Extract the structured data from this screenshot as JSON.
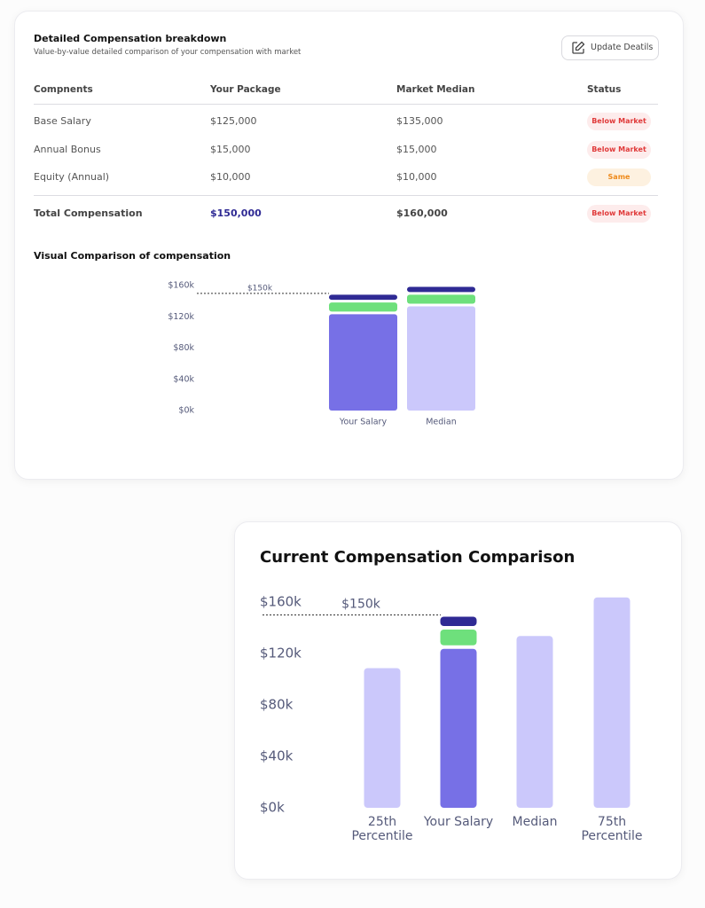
{
  "breakdown": {
    "title": "Detailed Compensation breakdown",
    "subtitle": "Value-by-value detailed comparison of your compensation with market",
    "button": "Update Deatils",
    "table": {
      "headers": [
        "Compnents",
        "Your Package",
        "Market Median",
        "Status"
      ],
      "rows": [
        [
          "Base Salary",
          "$125,000",
          "$135,000",
          "Below Market"
        ],
        [
          "Annual Bonus",
          "$15,000",
          "$15,000",
          "Below Market"
        ],
        [
          "Equity (Annual)",
          "$10,000",
          "$10,000",
          "Same"
        ]
      ],
      "total": [
        "Total Compensation",
        "$150,000",
        "$160,000",
        "Below Market"
      ]
    },
    "chart": {
      "type": "stacked-bar",
      "title": "Visual Comparison of compensation",
      "categories": [
        "Your Salary",
        "Median"
      ],
      "series": [
        {
          "colors": [
            "#7770e6",
            "#cbc8fb"
          ],
          "values": [
            125000,
            135000
          ]
        },
        {
          "colors": [
            "#6ee07c",
            "#6ee07c"
          ],
          "values": [
            15000,
            15000
          ]
        },
        {
          "colors": [
            "#2f2a94",
            "#2f2a94"
          ],
          "values": [
            10000,
            10000
          ]
        }
      ],
      "ylim": [
        0,
        160000
      ],
      "yticks": [
        {
          "value": 0,
          "label": "$0k"
        },
        {
          "value": 40000,
          "label": "$40k"
        },
        {
          "value": 80000,
          "label": "$80k"
        },
        {
          "value": 120000,
          "label": "$120k"
        },
        {
          "value": 160000,
          "label": "$160k"
        }
      ],
      "reference": {
        "value": 150000,
        "label": "$150k"
      }
    }
  },
  "comparison": {
    "chart": {
      "type": "stacked-bar",
      "title": "Current Compensation Comparison",
      "categories": [
        "25th Percentile",
        "Your Salary",
        "Median",
        "75th Percentile"
      ],
      "series": [
        {
          "colors": [
            "#cbc8fb",
            "#7770e6",
            "#cbc8fb",
            "#cbc8fb"
          ],
          "values": [
            110000,
            125000,
            135000,
            165000
          ]
        },
        {
          "colors": [
            "#6ee07c",
            "#6ee07c",
            "#6ee07c",
            "#6ee07c"
          ],
          "values": [
            null,
            15000,
            null,
            null
          ]
        },
        {
          "colors": [
            "#2f2a94",
            "#2f2a94",
            "#2f2a94",
            "#2f2a94"
          ],
          "values": [
            null,
            10000,
            null,
            null
          ]
        }
      ],
      "ylim": [
        0,
        160000
      ],
      "yticks": [
        {
          "value": 0,
          "label": "$0k"
        },
        {
          "value": 40000,
          "label": "$40k"
        },
        {
          "value": 80000,
          "label": "$80k"
        },
        {
          "value": 120000,
          "label": "$120k"
        },
        {
          "value": 160000,
          "label": "$160k"
        }
      ],
      "reference": {
        "value": 150000,
        "label": "$150k"
      }
    }
  }
}
